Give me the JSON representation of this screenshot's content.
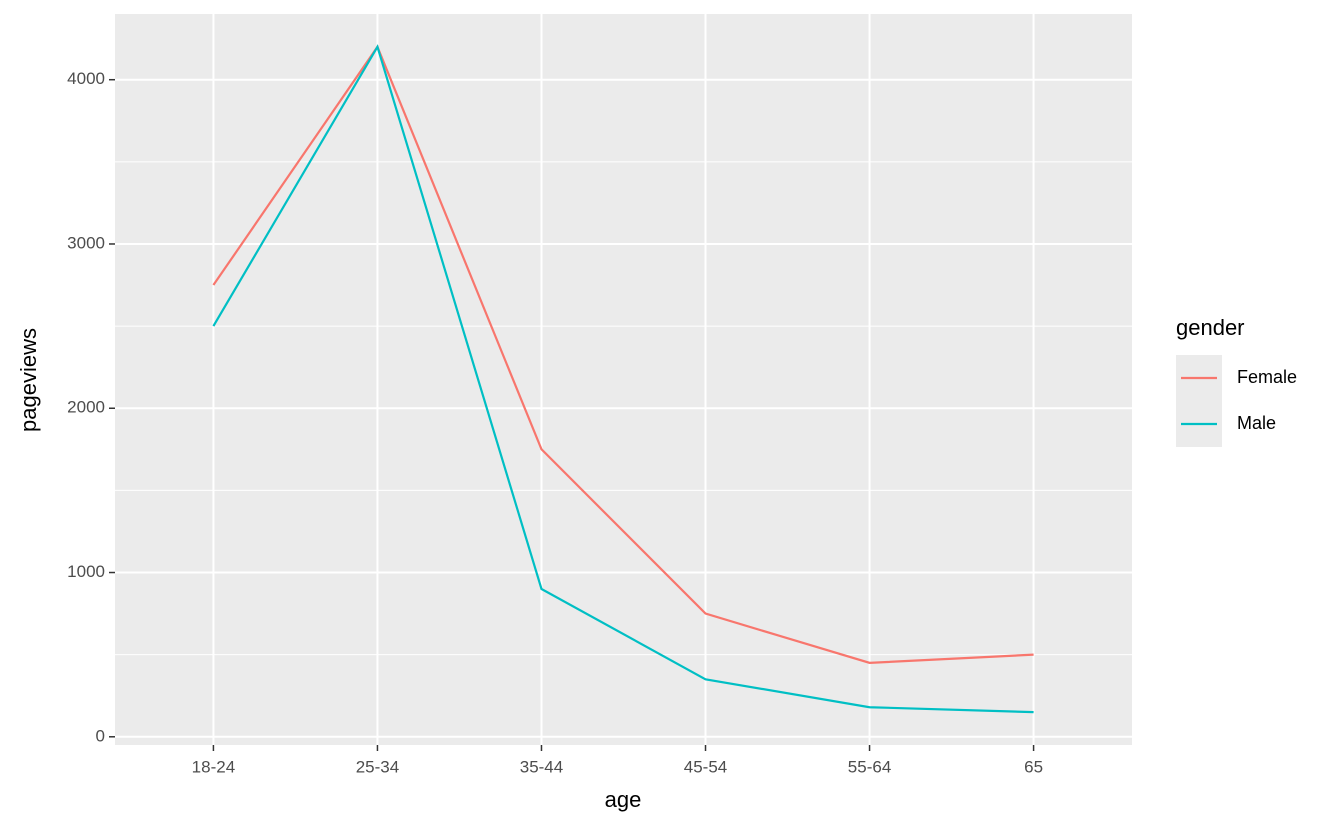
{
  "chart_data": {
    "type": "line",
    "x_label": "age",
    "y_label": "pageviews",
    "categories": [
      "18-24",
      "25-34",
      "35-44",
      "45-54",
      "55-64",
      "65"
    ],
    "series": [
      {
        "name": "Female",
        "color": "#f8766d",
        "values": [
          2750,
          4200,
          1750,
          750,
          450,
          500
        ]
      },
      {
        "name": "Male",
        "color": "#00bfc4",
        "values": [
          2500,
          4200,
          900,
          350,
          180,
          150
        ]
      }
    ],
    "ylim": [
      -50,
      4400
    ],
    "yticks": [
      0,
      1000,
      2000,
      3000,
      4000
    ],
    "y_minor_grid": [
      500,
      1500,
      2500,
      3500
    ],
    "grid": true,
    "legend_title": "gender",
    "legend_position": "right"
  }
}
